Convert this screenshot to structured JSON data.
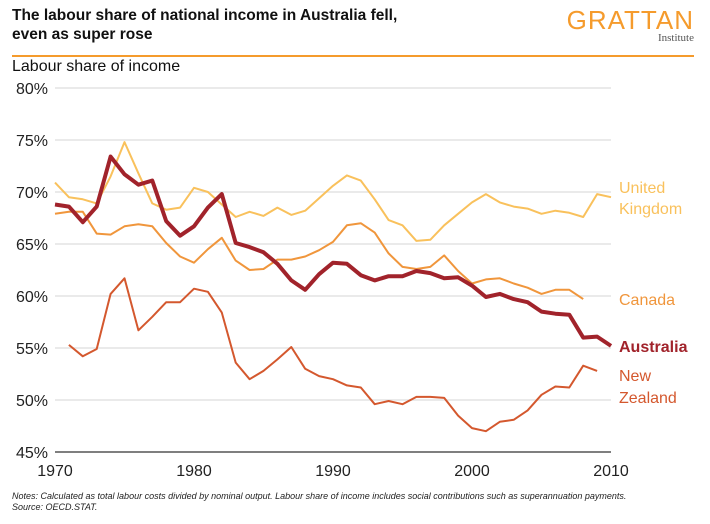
{
  "header": {
    "title_line1": "The labour share of national income in Australia fell,",
    "title_line2": "even as super rose",
    "logo_name": "GRATTAN",
    "logo_sub": "Institute"
  },
  "chart_data": {
    "type": "line",
    "title": "The labour share of national income in Australia fell, even as super rose",
    "ylabel": "Labour share of income",
    "xlabel": "",
    "xlim": [
      1970,
      2010
    ],
    "ylim": [
      45,
      80
    ],
    "x_ticks": [
      1970,
      1980,
      1990,
      2000,
      2010
    ],
    "x_tick_labels": [
      "1970",
      "1980",
      "1990",
      "2000",
      "2010"
    ],
    "y_ticks": [
      45,
      50,
      55,
      60,
      65,
      70,
      75,
      80
    ],
    "y_tick_labels": [
      "45%",
      "50%",
      "55%",
      "60%",
      "65%",
      "70%",
      "75%",
      "80%"
    ],
    "grid": true,
    "legend": "direct labels at right",
    "series": [
      {
        "name": "United Kingdom",
        "label_lines": [
          "United",
          "Kingdom"
        ],
        "color": "#f9c15c",
        "width": 2,
        "start": 1970,
        "values": [
          70.9,
          69.5,
          69.3,
          68.9,
          71.5,
          74.8,
          71.8,
          68.9,
          68.3,
          68.5,
          70.4,
          70.0,
          68.8,
          67.6,
          68.1,
          67.7,
          68.5,
          67.8,
          68.2,
          69.4,
          70.6,
          71.6,
          71.1,
          69.3,
          67.3,
          66.8,
          65.3,
          65.4,
          66.8,
          67.9,
          69.0,
          69.8,
          69.0,
          68.6,
          68.4,
          67.9,
          68.2,
          68.0,
          67.6,
          69.8,
          69.5
        ]
      },
      {
        "name": "Canada",
        "label_lines": [
          "Canada"
        ],
        "color": "#f0963c",
        "width": 2,
        "start": 1970,
        "values": [
          67.9,
          68.1,
          68.1,
          66.0,
          65.9,
          66.7,
          66.9,
          66.7,
          65.1,
          63.8,
          63.2,
          64.5,
          65.6,
          63.4,
          62.5,
          62.6,
          63.5,
          63.5,
          63.8,
          64.4,
          65.2,
          66.8,
          67.0,
          66.1,
          64.1,
          62.8,
          62.6,
          62.8,
          63.9,
          62.4,
          61.2,
          61.6,
          61.7,
          61.2,
          60.8,
          60.2,
          60.6,
          60.6,
          59.7
        ]
      },
      {
        "name": "Australia",
        "label_lines": [
          "Australia"
        ],
        "color": "#a1232b",
        "width": 4,
        "start": 1970,
        "values": [
          68.8,
          68.6,
          67.1,
          68.6,
          73.4,
          71.7,
          70.7,
          71.1,
          67.2,
          65.8,
          66.7,
          68.5,
          69.8,
          65.1,
          64.7,
          64.2,
          63.1,
          61.5,
          60.6,
          62.1,
          63.2,
          63.1,
          62.0,
          61.5,
          61.9,
          61.9,
          62.4,
          62.2,
          61.7,
          61.8,
          61.0,
          59.9,
          60.2,
          59.7,
          59.4,
          58.5,
          58.3,
          58.2,
          56.0,
          56.1,
          55.2
        ]
      },
      {
        "name": "New Zealand",
        "label_lines": [
          "New",
          "Zealand"
        ],
        "color": "#d4582e",
        "width": 2,
        "start": 1971,
        "values": [
          55.3,
          54.2,
          54.9,
          60.2,
          61.7,
          56.7,
          58.0,
          59.4,
          59.4,
          60.7,
          60.4,
          58.4,
          53.6,
          52.0,
          52.8,
          53.9,
          55.1,
          53.0,
          52.3,
          52.0,
          51.4,
          51.2,
          49.6,
          49.9,
          49.6,
          50.3,
          50.3,
          50.2,
          48.5,
          47.3,
          47.0,
          47.9,
          48.1,
          49.0,
          50.5,
          51.3,
          51.2,
          53.3,
          52.8
        ]
      }
    ]
  },
  "notes": {
    "line1": "Notes: Calculated as total labour costs divided by nominal output. Labour share of income includes social contributions such as superannuation payments.",
    "line2": "Source: OECD.STAT."
  }
}
